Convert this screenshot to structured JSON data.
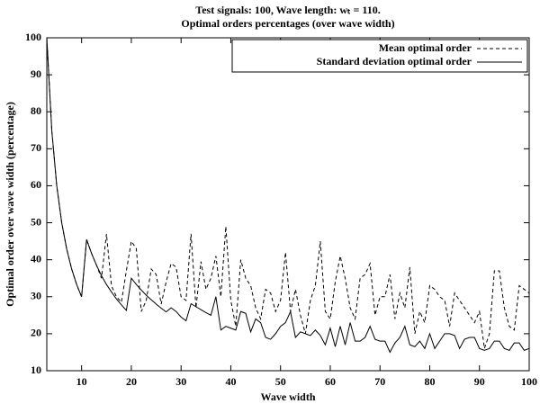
{
  "chart_data": {
    "type": "line",
    "title": "Test signals: 100, Wave length: wₜ = 110.",
    "subtitle": "Optimal orders percentages (over wave width)",
    "x_label": "Wave width",
    "y_label": "Optimal order over wave width (percentage)",
    "x": [
      3,
      4,
      5,
      6,
      7,
      8,
      9,
      10,
      11,
      12,
      13,
      14,
      15,
      16,
      17,
      18,
      19,
      20,
      21,
      22,
      23,
      24,
      25,
      26,
      27,
      28,
      29,
      30,
      31,
      32,
      33,
      34,
      35,
      36,
      37,
      38,
      39,
      40,
      41,
      42,
      43,
      44,
      45,
      46,
      47,
      48,
      49,
      50,
      51,
      52,
      53,
      54,
      55,
      56,
      57,
      58,
      59,
      60,
      61,
      62,
      63,
      64,
      65,
      66,
      67,
      68,
      69,
      70,
      71,
      72,
      73,
      74,
      75,
      76,
      77,
      78,
      79,
      80,
      81,
      82,
      83,
      84,
      85,
      86,
      87,
      88,
      89,
      90,
      91,
      92,
      93,
      94,
      95,
      96,
      97,
      98,
      99,
      100
    ],
    "series": [
      {
        "name": "Mean optimal order",
        "color": "#000000",
        "dash": true,
        "values": [
          100,
          75,
          60,
          50,
          42.9,
          37.5,
          33.3,
          30,
          45.5,
          41.7,
          38.5,
          35,
          47,
          33,
          30,
          28.5,
          37,
          45,
          43,
          26,
          29,
          37.5,
          36,
          28,
          34,
          39,
          38,
          30,
          29,
          47,
          27,
          39.5,
          32,
          35,
          41,
          30,
          49,
          29,
          22,
          40,
          35,
          33,
          27,
          24,
          32,
          31,
          26,
          29,
          42,
          26,
          32,
          25,
          20,
          29,
          33,
          45,
          26,
          24,
          34,
          41,
          35,
          27,
          24,
          35,
          36,
          39,
          25,
          30,
          30,
          36,
          24,
          31,
          27,
          38,
          20,
          26,
          23,
          33,
          32,
          30,
          29,
          22,
          31,
          29,
          27,
          25,
          23,
          26,
          16,
          20,
          37,
          37,
          27,
          22,
          21,
          33,
          32,
          31
        ]
      },
      {
        "name": "Standard deviation optimal order",
        "color": "#000000",
        "dash": false,
        "values": [
          100,
          75,
          60,
          50,
          42.9,
          37.5,
          33.3,
          30,
          45.5,
          41.7,
          38.5,
          35.7,
          33.3,
          31.3,
          29.4,
          27.8,
          26.3,
          35,
          33.3,
          31.8,
          30.4,
          29.2,
          28,
          26.9,
          25.9,
          27,
          26,
          24.5,
          23.5,
          28.1,
          27.3,
          26.5,
          25.7,
          25,
          30,
          21,
          22,
          21.5,
          21,
          26,
          25.5,
          20.5,
          24,
          23,
          19,
          18.5,
          20,
          22,
          23,
          26,
          19,
          20.5,
          20,
          19.5,
          21,
          19.5,
          17,
          21.5,
          16.5,
          22,
          17,
          23,
          18,
          18,
          19,
          22,
          18.5,
          18,
          18,
          15,
          17.5,
          19,
          22,
          17,
          16.5,
          18,
          16,
          20,
          16,
          18,
          20,
          20,
          19.5,
          16,
          18.5,
          19,
          19,
          16,
          15.5,
          16,
          18,
          18,
          16,
          15.5,
          17.5,
          17.5,
          15.5,
          16
        ]
      }
    ],
    "xlim": [
      3,
      100
    ],
    "xticks": [
      10,
      20,
      30,
      40,
      50,
      60,
      70,
      80,
      90,
      100
    ],
    "ylim": [
      10,
      100
    ],
    "yticks": [
      10,
      20,
      30,
      40,
      50,
      60,
      70,
      80,
      90,
      100
    ],
    "legend": "top-right"
  }
}
